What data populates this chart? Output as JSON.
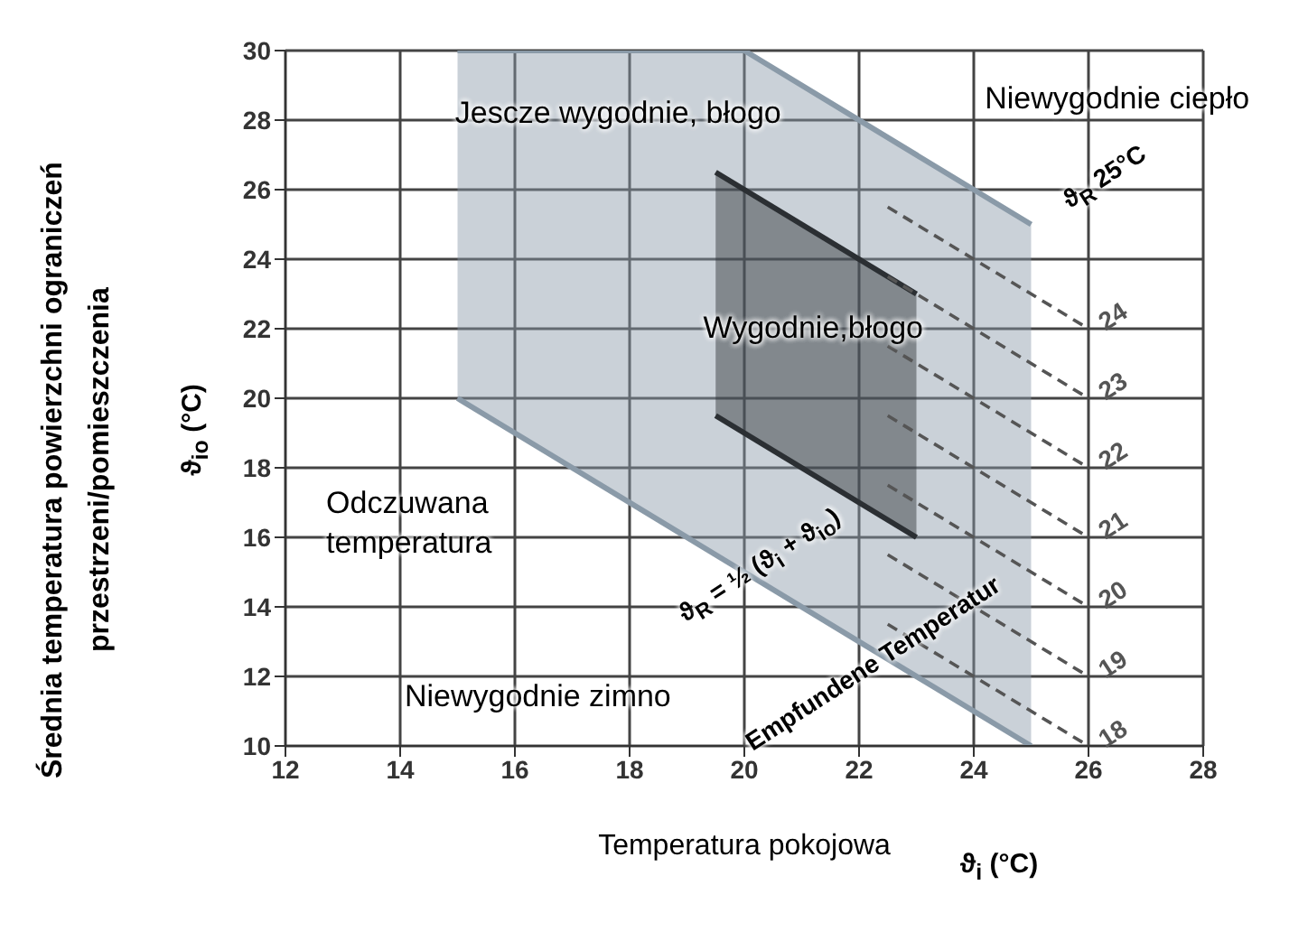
{
  "chart_data": {
    "type": "line",
    "xlabel": "Temperatura pokojowa",
    "ylabel": "Średnia temperatura powierzchni ograniczeń przestrzeni/pomieszczenia",
    "xlim": [
      12,
      28
    ],
    "xticks": [
      12,
      14,
      16,
      18,
      20,
      22,
      24,
      26,
      28
    ],
    "ylim": [
      10,
      30
    ],
    "yticks": [
      10,
      12,
      14,
      16,
      18,
      20,
      22,
      24,
      26,
      28,
      30
    ],
    "grid": true,
    "marker": "none",
    "series": [
      {
        "color": "#8a9aa8",
        "x": [
          15,
          20,
          25
        ],
        "values": [
          30,
          30,
          25
        ],
        "lower": [
          20,
          15,
          10
        ],
        "upper": [
          30,
          30,
          25
        ]
      },
      {
        "color": "#2b2f33",
        "x": [
          19.5,
          23
        ],
        "values": [
          26.5,
          23
        ],
        "lower": [
          19.5,
          16
        ],
        "upper": [
          26.5,
          23
        ]
      },
      {
        "color": "#8a9aa8",
        "x": [
          15,
          25
        ],
        "values": [
          20,
          10
        ]
      },
      {
        "color": "#2b2f33",
        "x": [
          19.5,
          23
        ],
        "values": [
          19.5,
          16
        ]
      },
      {
        "name": "18",
        "color": "#555555",
        "line_style": "dashed",
        "x": [
          22.5,
          26
        ],
        "values": [
          13.5,
          10
        ]
      },
      {
        "name": "19",
        "color": "#555555",
        "line_style": "dashed",
        "x": [
          22.5,
          26
        ],
        "values": [
          15.5,
          12
        ]
      },
      {
        "name": "20",
        "color": "#555555",
        "line_style": "dashed",
        "x": [
          22.5,
          26
        ],
        "values": [
          17.5,
          14
        ]
      },
      {
        "name": "21",
        "color": "#555555",
        "line_style": "dashed",
        "x": [
          22.5,
          26
        ],
        "values": [
          19.5,
          16
        ]
      },
      {
        "name": "22",
        "color": "#555555",
        "line_style": "dashed",
        "x": [
          22.5,
          26
        ],
        "values": [
          21.5,
          18
        ]
      },
      {
        "name": "23",
        "color": "#555555",
        "line_style": "dashed",
        "x": [
          22.5,
          26
        ],
        "values": [
          23.5,
          20
        ]
      },
      {
        "name": "24",
        "color": "#555555",
        "line_style": "dashed",
        "x": [
          22.5,
          26
        ],
        "values": [
          25.5,
          22
        ]
      }
    ],
    "annotations": [
      "ϑ$_{io}$ (°C)",
      "ϑ$_{i}$ (°C)",
      "Jescze wygodnie, błogo",
      "Niewygodnie ciepło",
      "Wygodnie,błogo",
      "Odczuwana temperatura",
      "Niewygodnie zimno",
      {
        "text": "ϑ$_{R}$ = ½ (ϑ$_{i}$ + ϑ$_{io}$)",
        "x": 20.5,
        "y": 14.5
      },
      {
        "text": "Empfundene Temperatur",
        "x": 22,
        "y": 13
      },
      "ϑ$_{R}$ 25°C"
    ]
  }
}
